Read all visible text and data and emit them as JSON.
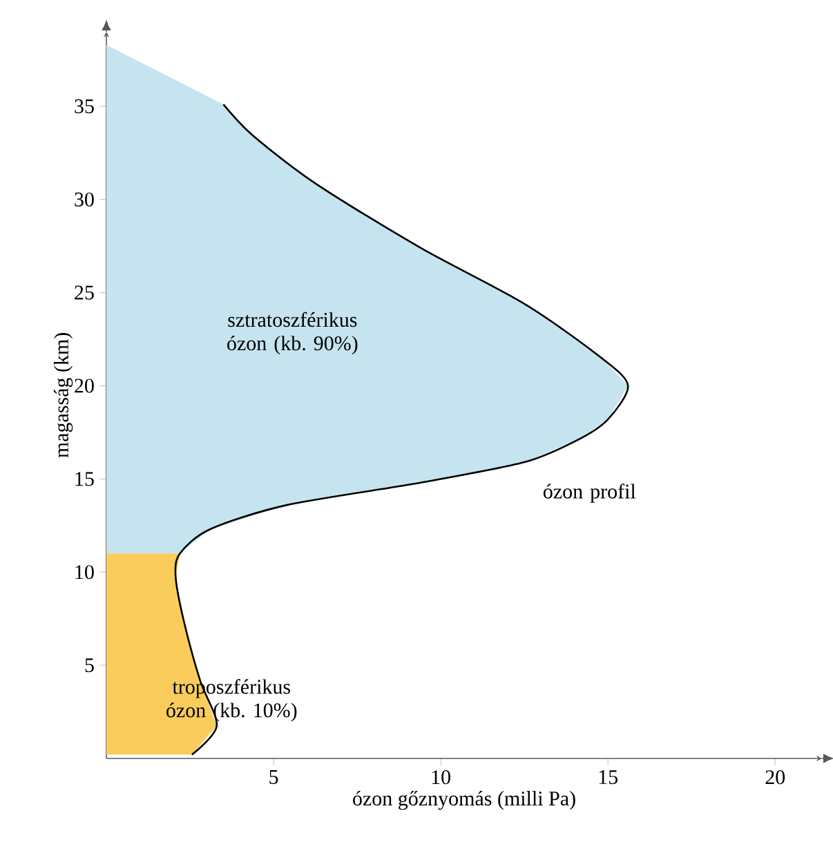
{
  "chart_data": {
    "type": "line",
    "xlabel": "ózon gőznyomás (milli Pa)",
    "ylabel": "magasság (km)",
    "xlim": [
      0,
      21.4
    ],
    "ylim": [
      0,
      39
    ],
    "xticks": [
      5,
      10,
      15,
      20
    ],
    "yticks": [
      5,
      10,
      15,
      20,
      25,
      30,
      35
    ],
    "series": [
      {
        "type": "area",
        "color": "#c6e4ef",
        "x": [
          0,
          3.5,
          4.4,
          6.3,
          9.4,
          12.5,
          14.8,
          15.6,
          15,
          14.1,
          12.5,
          9.4,
          5.4,
          3.1,
          2.2,
          0
        ],
        "values": [
          38.3,
          35.1,
          33.4,
          30.8,
          27.4,
          24.4,
          21.5,
          20,
          18.2,
          17.1,
          15.9,
          14.8,
          13.6,
          12.3,
          11,
          11
        ]
      },
      {
        "type": "area",
        "color": "#f9cc5c",
        "x": [
          0,
          2.2,
          2.07,
          2.3,
          2.8,
          3.3,
          2.56,
          0
        ],
        "values": [
          11,
          11,
          9.8,
          7.5,
          4.2,
          1.75,
          0.2,
          0.2
        ]
      },
      {
        "color": "#000000",
        "x": [
          3.5,
          4.4,
          6.3,
          9.4,
          12.5,
          14.8,
          15.6,
          15,
          14.1,
          12.5,
          9.4,
          5.4,
          3.1,
          2.2,
          2.07,
          2.3,
          2.8,
          3.3,
          2.56
        ],
        "values": [
          35.1,
          33.4,
          30.8,
          27.4,
          24.4,
          21.5,
          20,
          18.2,
          17.1,
          15.9,
          14.8,
          13.6,
          12.3,
          11,
          9.8,
          7.5,
          4.2,
          1.75,
          0.2
        ]
      }
    ],
    "annotations": [
      "sztratoszférikus ózon (kb. 90%)",
      "ózon profil",
      "troposzférikus ózon (kb. 10%)"
    ]
  }
}
